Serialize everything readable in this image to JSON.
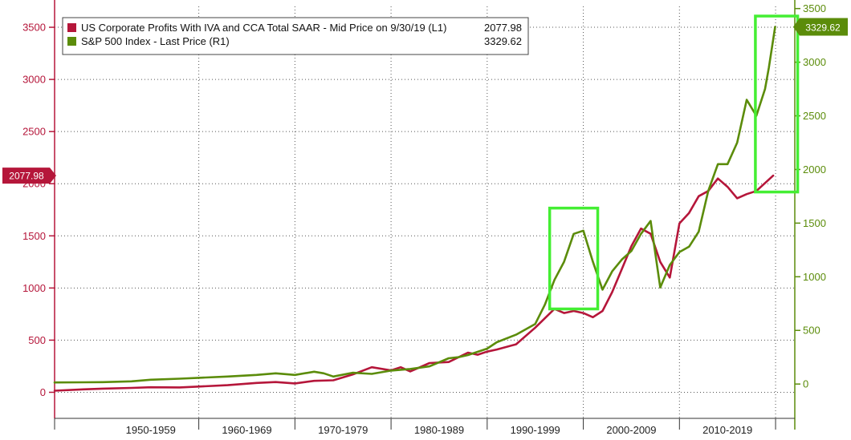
{
  "chart_data": {
    "type": "line",
    "categories": [
      "1950-1959",
      "1960-1969",
      "1970-1979",
      "1980-1989",
      "1990-1999",
      "2000-2009",
      "2010-2019"
    ],
    "xlim": [
      1945,
      2022
    ],
    "left_axis": {
      "ylim": [
        -250,
        3700
      ],
      "ticks": [
        0,
        500,
        1000,
        1500,
        2000,
        2500,
        3000,
        3500
      ],
      "color": "#b5163a"
    },
    "right_axis": {
      "ylim": [
        -320,
        3520
      ],
      "ticks": [
        0,
        500,
        1000,
        1500,
        2000,
        2500,
        3000,
        3500
      ],
      "color": "#5b8c0a"
    },
    "grid": true,
    "legend_position": "top-left",
    "series": [
      {
        "name": "US Corporate Profits With IVA and CCA Total SAAR - Mid Price on 9/30/19 (L1)",
        "last_value": "2077.98",
        "axis": "left",
        "color": "#b5163a",
        "x": [
          1945,
          1948,
          1950,
          1953,
          1955,
          1958,
          1960,
          1963,
          1966,
          1968,
          1970,
          1972,
          1974,
          1976,
          1978,
          1980,
          1981,
          1982,
          1984,
          1986,
          1988,
          1989,
          1990,
          1991,
          1993,
          1995,
          1997,
          1998,
          1999,
          2000,
          2001,
          2002,
          2003,
          2004,
          2005,
          2006,
          2007,
          2008,
          2009,
          2010,
          2011,
          2012,
          2013,
          2014,
          2015,
          2016,
          2017,
          2018,
          2019.75
        ],
        "values": [
          15,
          28,
          35,
          42,
          48,
          47,
          55,
          68,
          90,
          98,
          85,
          110,
          115,
          170,
          240,
          210,
          240,
          200,
          280,
          290,
          380,
          360,
          390,
          410,
          460,
          620,
          800,
          760,
          780,
          760,
          720,
          780,
          960,
          1180,
          1400,
          1570,
          1520,
          1250,
          1100,
          1620,
          1720,
          1880,
          1930,
          2050,
          1970,
          1860,
          1900,
          1930,
          2077.98
        ]
      },
      {
        "name": "S&P 500 Index - Last Price (R1)",
        "last_value": "3329.62",
        "axis": "right",
        "color": "#5b8c0a",
        "x": [
          1945,
          1948,
          1950,
          1953,
          1955,
          1958,
          1960,
          1963,
          1966,
          1968,
          1970,
          1972,
          1973,
          1974,
          1976,
          1978,
          1980,
          1982,
          1984,
          1986,
          1987,
          1988,
          1990,
          1991,
          1993,
          1995,
          1996,
          1997,
          1998,
          1999,
          2000,
          2001,
          2002,
          2003,
          2004,
          2005,
          2006,
          2007,
          2008,
          2009,
          2010,
          2011,
          2012,
          2013,
          2014,
          2015,
          2016,
          2017,
          2018,
          2018.9,
          2019.3,
          2019.95
        ],
        "values": [
          15,
          16,
          18,
          25,
          40,
          50,
          58,
          70,
          85,
          100,
          85,
          115,
          100,
          70,
          105,
          95,
          125,
          140,
          165,
          240,
          250,
          270,
          330,
          390,
          460,
          560,
          740,
          970,
          1140,
          1400,
          1430,
          1140,
          880,
          1050,
          1160,
          1240,
          1400,
          1520,
          900,
          1110,
          1230,
          1280,
          1420,
          1800,
          2050,
          2050,
          2250,
          2650,
          2500,
          2750,
          2950,
          3329.62
        ]
      }
    ]
  }
}
